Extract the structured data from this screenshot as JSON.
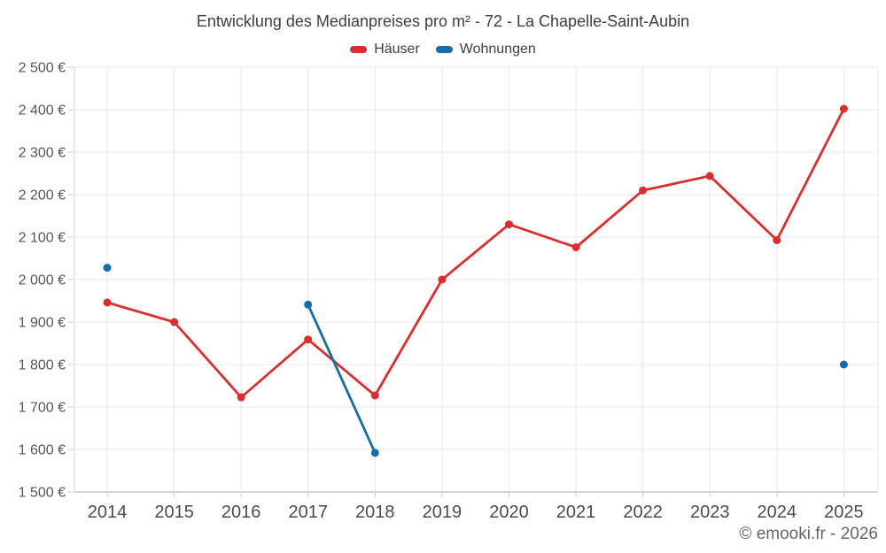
{
  "chart_data": {
    "type": "line",
    "title": "Entwicklung des Medianpreises pro m² - 72 - La Chapelle-Saint-Aubin",
    "x": [
      "2014",
      "2015",
      "2016",
      "2017",
      "2018",
      "2019",
      "2020",
      "2021",
      "2022",
      "2023",
      "2024",
      "2025"
    ],
    "series": [
      {
        "name": "Häuser",
        "color": "#dc2d30",
        "values": [
          1946,
          1900,
          1723,
          1859,
          1727,
          2000,
          2130,
          2076,
          2210,
          2244,
          2093,
          2402
        ]
      },
      {
        "name": "Wohnungen",
        "color": "#166ea8",
        "values": [
          2028,
          null,
          null,
          1941,
          1592,
          null,
          null,
          null,
          null,
          null,
          null,
          1800
        ]
      }
    ],
    "ylim": [
      1500,
      2500
    ],
    "ytick_step": 100,
    "ytick_labels": [
      "1 500 €",
      "1 600 €",
      "1 700 €",
      "1 800 €",
      "1 900 €",
      "2 000 €",
      "2 100 €",
      "2 200 €",
      "2 300 €",
      "2 400 €",
      "2 500 €"
    ],
    "grid": true,
    "legend_position": "top"
  },
  "watermark": "© emooki.fr - 2026",
  "colors": {
    "grid": "#e9e9e9",
    "axis_bottom": "#ababab",
    "axis_left": "#d9d9d9",
    "tick": "#cccccc",
    "title_text": "#3e3e3e",
    "ytick_text": "#555555",
    "xtick_text": "#4c4c4c",
    "legend_text": "#3f3f3f",
    "watermark_text": "#666666"
  }
}
